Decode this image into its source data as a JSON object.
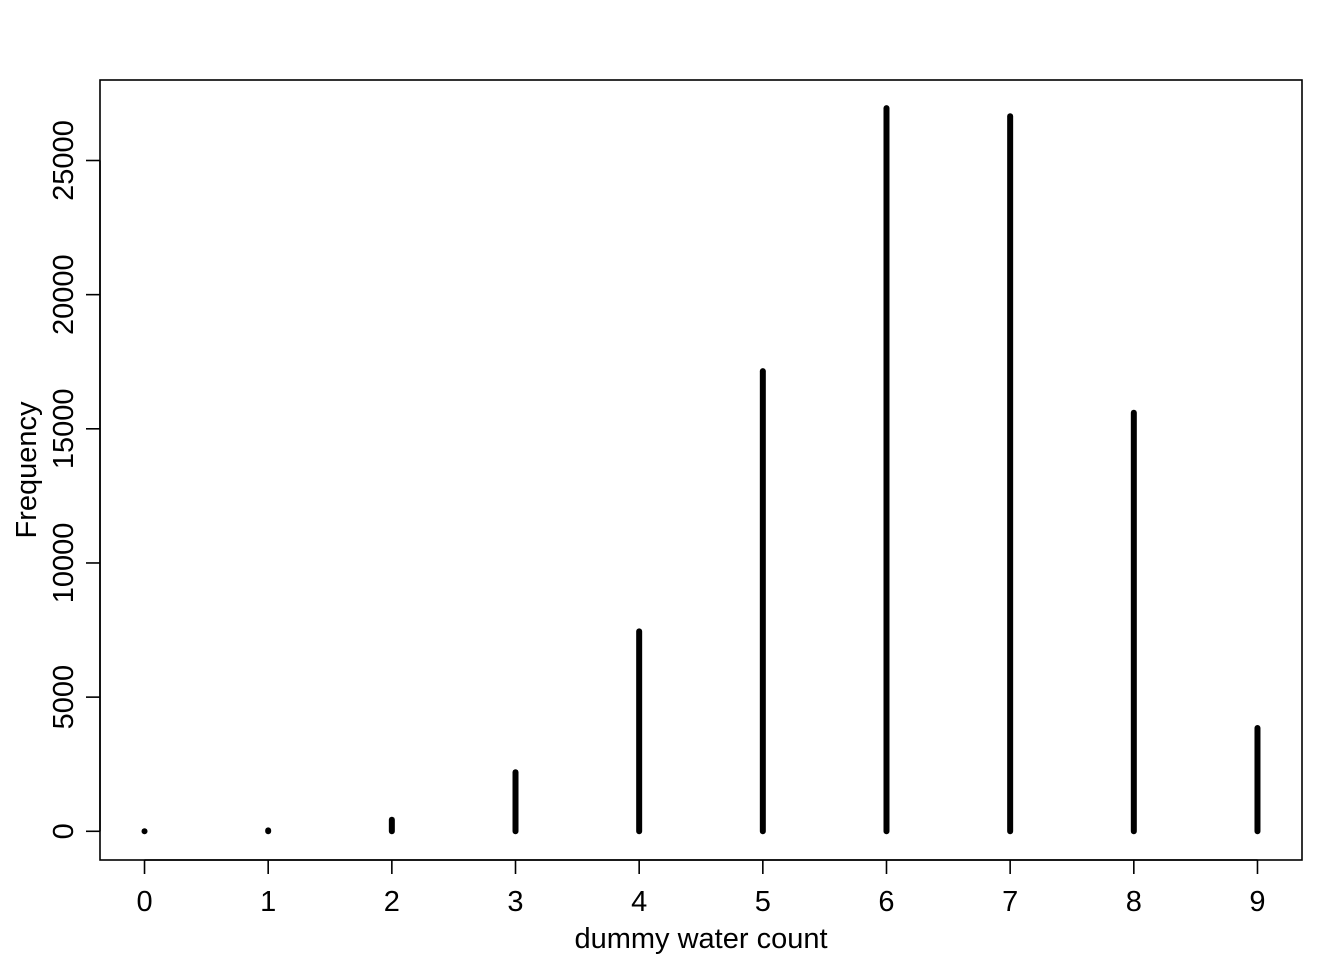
{
  "chart_data": {
    "type": "bar",
    "title": "",
    "xlabel": "dummy water count",
    "ylabel": "Frequency",
    "x": [
      0,
      1,
      2,
      3,
      4,
      5,
      6,
      7,
      8,
      9
    ],
    "values": [
      2,
      35,
      430,
      2200,
      7450,
      17150,
      26950,
      26650,
      15600,
      3850
    ],
    "xlim": [
      -0.36,
      9.36
    ],
    "ylim": [
      -1070,
      28000
    ],
    "xticks": [
      "0",
      "1",
      "2",
      "3",
      "4",
      "5",
      "6",
      "7",
      "8",
      "9"
    ],
    "yticks": [
      "0",
      "5000",
      "10000",
      "15000",
      "20000",
      "25000"
    ],
    "grid": false,
    "legend": "none",
    "colors": {
      "bars": "#000000",
      "axes": "#000000",
      "background": "#ffffff"
    }
  }
}
